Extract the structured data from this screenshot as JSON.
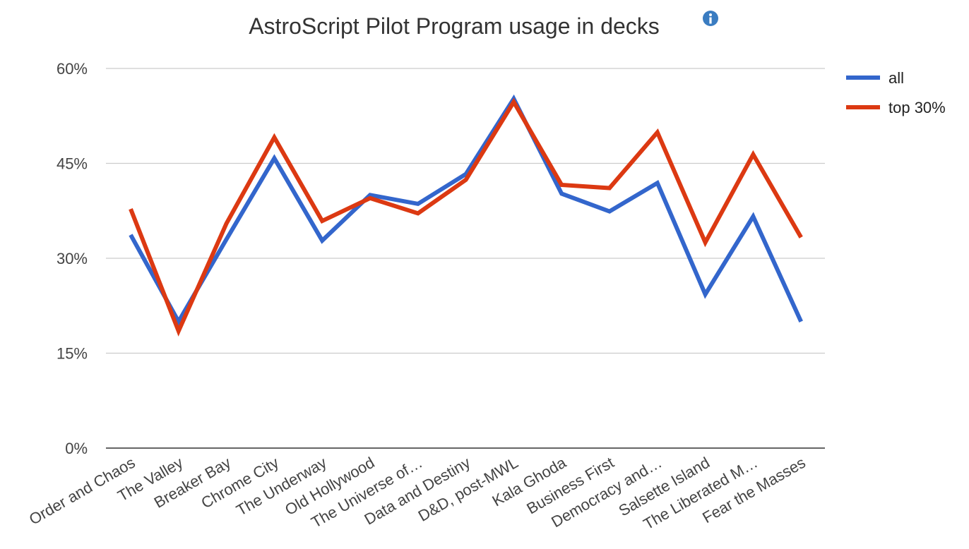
{
  "chart_data": {
    "type": "line",
    "title": "AstroScript Pilot Program usage in decks",
    "info_icon": "info-icon",
    "categories": [
      "Order and Chaos",
      "The Valley",
      "Breaker Bay",
      "Chrome City",
      "The Underway",
      "Old Hollywood",
      "The Universe of…",
      "Data and Destiny",
      "D&D, post-MWL",
      "Kala Ghoda",
      "Business First",
      "Democracy and…",
      "Salsette Island",
      "The Liberated M…",
      "Fear the Masses"
    ],
    "series": [
      {
        "name": "all",
        "color": "#3366cc",
        "values": [
          33.7,
          20.0,
          33.0,
          45.8,
          32.8,
          40.0,
          38.6,
          43.3,
          55.2,
          40.2,
          37.4,
          41.9,
          24.3,
          36.6,
          20.0
        ]
      },
      {
        "name": "top 30%",
        "color": "#dc3912",
        "values": [
          37.8,
          18.5,
          35.5,
          49.1,
          35.9,
          39.5,
          37.1,
          42.4,
          54.7,
          41.6,
          41.1,
          49.9,
          32.5,
          46.4,
          33.3
        ]
      }
    ],
    "ylim": [
      0,
      60
    ],
    "yticks": [
      0,
      15,
      30,
      45,
      60
    ],
    "ytick_labels": [
      "0%",
      "15%",
      "30%",
      "45%",
      "60%"
    ],
    "xlabel": "",
    "ylabel": "",
    "grid": true,
    "legend_position": "right"
  }
}
